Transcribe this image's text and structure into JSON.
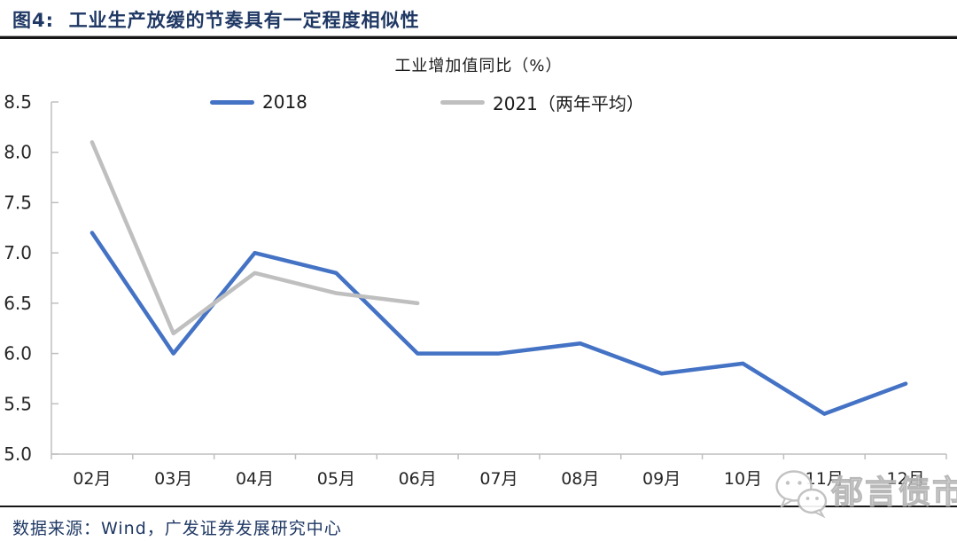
{
  "figure": {
    "title": "图4:  工业生产放缓的节奏具有一定程度相似性",
    "source": "数据来源：Wind，广发证券发展研究中心",
    "watermark": "郁言债市"
  },
  "colors": {
    "title_navy": "#1F3864",
    "line_blue": "#4472C4",
    "line_gray": "#BFBFBF",
    "axis_gray": "#BFBFBF",
    "divider_black": "#161616"
  },
  "chart_data": {
    "type": "line",
    "title": "工业增加值同比（%）",
    "categories": [
      "02月",
      "03月",
      "04月",
      "05月",
      "06月",
      "07月",
      "08月",
      "09月",
      "10月",
      "11月",
      "12月"
    ],
    "series": [
      {
        "key": "2018",
        "name": "2018",
        "color": "#4472C4",
        "values": [
          7.2,
          6.0,
          7.0,
          6.8,
          6.0,
          6.0,
          6.1,
          5.8,
          5.9,
          5.4,
          5.7
        ]
      },
      {
        "key": "2021-two-year-avg",
        "name": "2021（两年平均）",
        "color": "#BFBFBF",
        "values": [
          8.1,
          6.2,
          6.8,
          6.6,
          6.5,
          null,
          null,
          null,
          null,
          null,
          null
        ]
      }
    ],
    "ylim": [
      5.0,
      8.5
    ],
    "ytick_step": 0.5,
    "ytick_labels": [
      "5.0",
      "5.5",
      "6.0",
      "6.5",
      "7.0",
      "7.5",
      "8.0",
      "8.5"
    ],
    "grid": false,
    "legend_position": "top",
    "axis_color": "#BFBFBF"
  }
}
